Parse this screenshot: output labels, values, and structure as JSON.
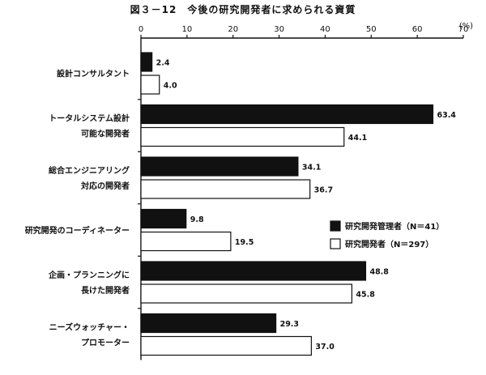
{
  "chart_data": {
    "type": "bar",
    "orientation": "horizontal",
    "title": "図３－12　今後の研究開発者に求められる資質",
    "unit": "(%)",
    "xlim": [
      0,
      70
    ],
    "x_ticks": [
      0,
      10,
      20,
      30,
      40,
      50,
      60,
      70
    ],
    "grid": false,
    "legend_position": "right",
    "categories": [
      [
        "設計コンサルタント"
      ],
      [
        "トータルシステム設計",
        "可能な開発者"
      ],
      [
        "総合エンジニアリング",
        "対応の開発者"
      ],
      [
        "研究開発のコーディネーター"
      ],
      [
        "企画・プランニングに",
        "長けた開発者"
      ],
      [
        "ニーズウォッチャー・",
        "プロモーター"
      ]
    ],
    "series": [
      {
        "name": "研究開発管理者（N＝41）",
        "color": "#111111",
        "values": [
          2.4,
          63.4,
          34.1,
          9.8,
          48.8,
          29.3
        ]
      },
      {
        "name": "研究開発者（N＝297）",
        "color": "#ffffff",
        "values": [
          4.0,
          44.1,
          36.7,
          19.5,
          45.8,
          37.0
        ]
      }
    ]
  }
}
